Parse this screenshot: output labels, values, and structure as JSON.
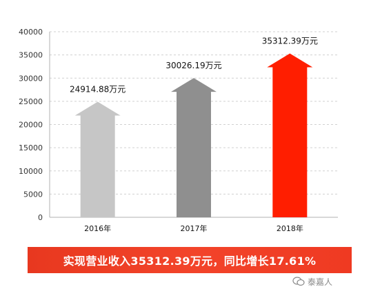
{
  "chart_data": {
    "type": "bar",
    "categories": [
      "2016年",
      "2017年",
      "2018年"
    ],
    "values": [
      24914.88,
      30026.19,
      35312.39
    ],
    "data_labels": [
      "24914.88万元",
      "30026.19万元",
      "35312.39万元"
    ],
    "bar_colors": [
      "#c6c6c6",
      "#8f8f8f",
      "#ff1e00"
    ],
    "bar_shape": "arrow",
    "ylim": [
      0,
      40000
    ],
    "yticks": [
      "0",
      "5000",
      "10000",
      "15000",
      "20000",
      "25000",
      "30000",
      "35000",
      "40000"
    ],
    "grid": true
  },
  "banner": {
    "text": "实现营业收入35312.39万元，同比增长17.61%"
  },
  "watermark": {
    "text": "泰嘉人",
    "icon": "wechat-icon"
  }
}
